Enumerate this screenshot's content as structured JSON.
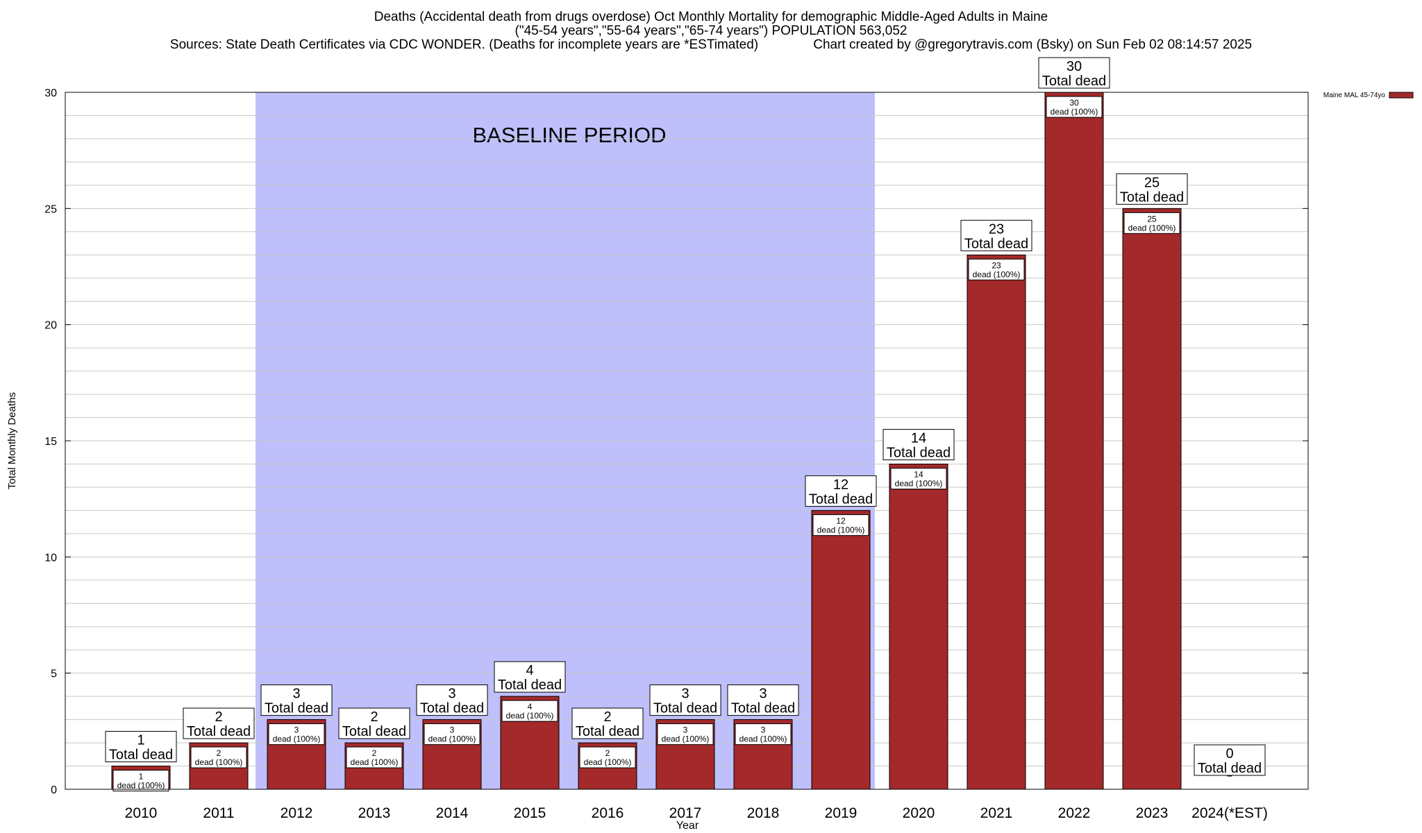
{
  "title": {
    "line1": "Deaths (Accidental death from drugs overdose) Oct Monthly Mortality for demographic Middle-Aged Adults in Maine",
    "line2": "(\"45-54 years\",\"55-64 years\",\"65-74 years\") POPULATION 563,052",
    "line3": "Sources: State Death Certificates via CDC WONDER. (Deaths for incomplete years are *ESTimated)               Chart created by @gregorytravis.com (Bsky) on Sun Feb 02 08:14:57 2025"
  },
  "chart_data": {
    "type": "bar",
    "title": "Deaths (Accidental death from drugs overdose) Oct Monthly Mortality for demographic Middle-Aged Adults in Maine",
    "xlabel": "Year",
    "ylabel": "Total Monthly Deaths",
    "ylim": [
      0,
      30
    ],
    "yticks": [
      0,
      5,
      10,
      15,
      20,
      25,
      30
    ],
    "grid": true,
    "legend_position": "top-right",
    "categories": [
      "2010",
      "2011",
      "2012",
      "2013",
      "2014",
      "2015",
      "2016",
      "2017",
      "2018",
      "2019",
      "2020",
      "2021",
      "2022",
      "2023",
      "2024(*EST)"
    ],
    "series": [
      {
        "name": "Maine MAL 45-74yo",
        "color": "#a3292a",
        "values": [
          1,
          2,
          3,
          2,
          3,
          4,
          2,
          3,
          3,
          12,
          14,
          23,
          30,
          25,
          0
        ]
      }
    ],
    "top_label_suffix": "Total dead",
    "inner_label_suffix": "dead (100%)",
    "annotation": {
      "text": "BASELINE PERIOD",
      "from": "2012",
      "to": "2019",
      "color": "#bfbffb"
    }
  }
}
